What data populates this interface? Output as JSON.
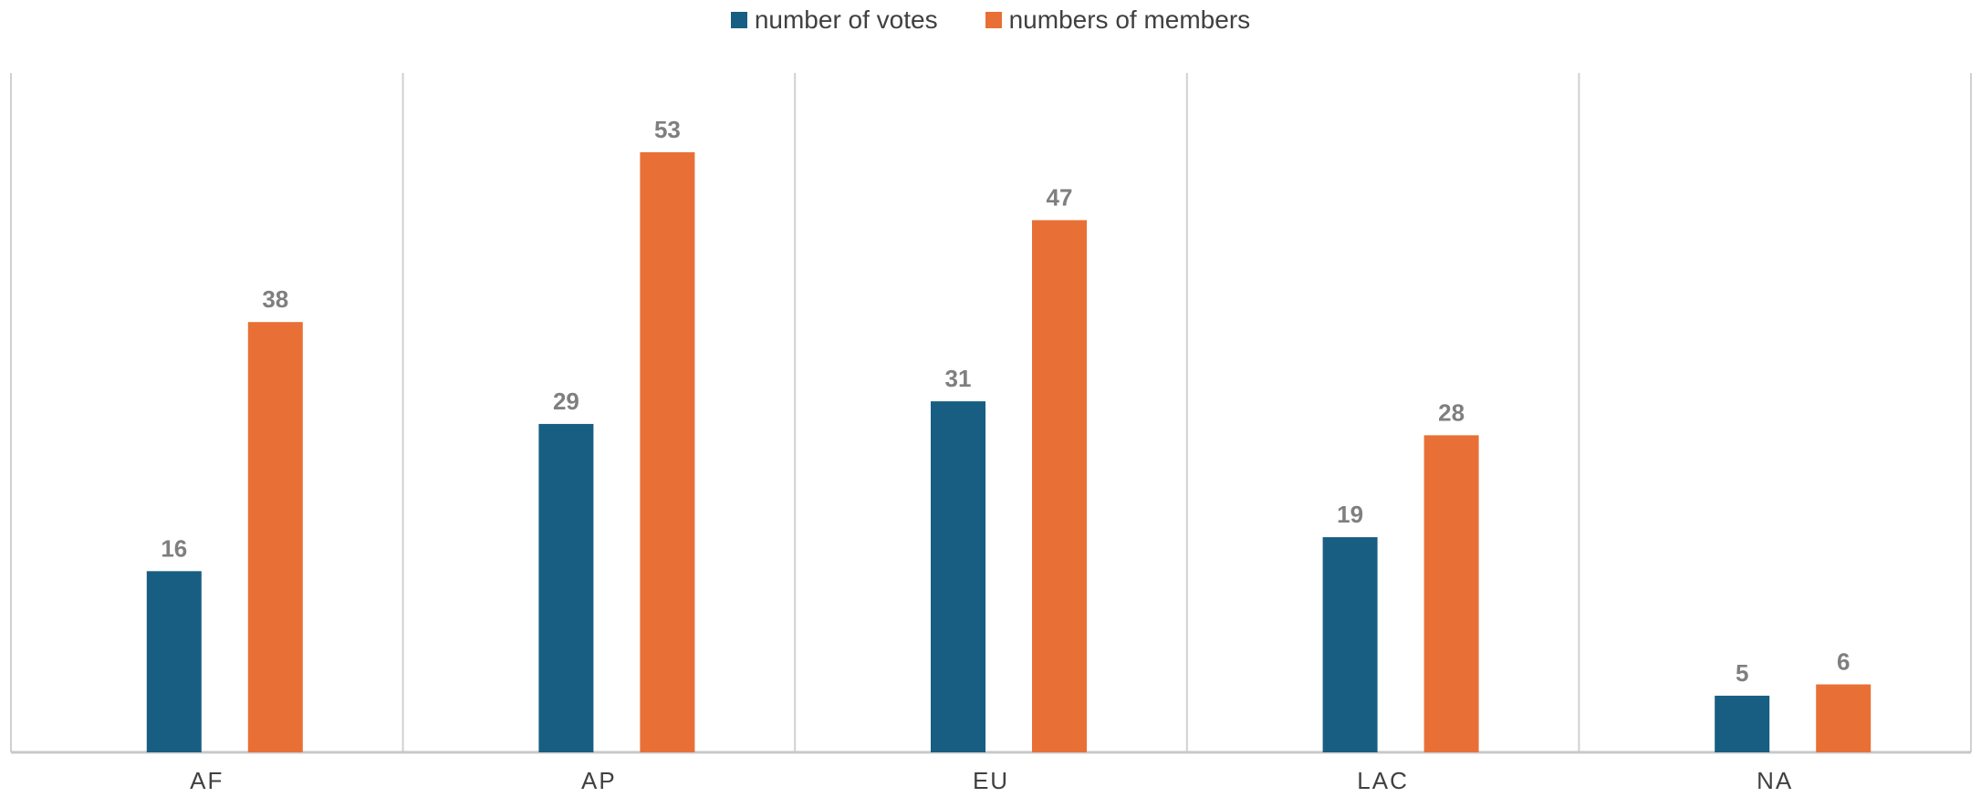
{
  "chart_data": {
    "type": "bar",
    "categories": [
      "AF",
      "AP",
      "EU",
      "LAC",
      "NA"
    ],
    "series": [
      {
        "name": "number of votes",
        "values": [
          16,
          29,
          31,
          19,
          5
        ],
        "color": "#175E82"
      },
      {
        "name": "numbers of members",
        "values": [
          38,
          53,
          47,
          28,
          6
        ],
        "color": "#E87036"
      }
    ],
    "title": "",
    "xlabel": "",
    "ylabel": "",
    "ylim": [
      0,
      60
    ],
    "grid": false,
    "legend_position": "top-center",
    "data_labels": true
  }
}
